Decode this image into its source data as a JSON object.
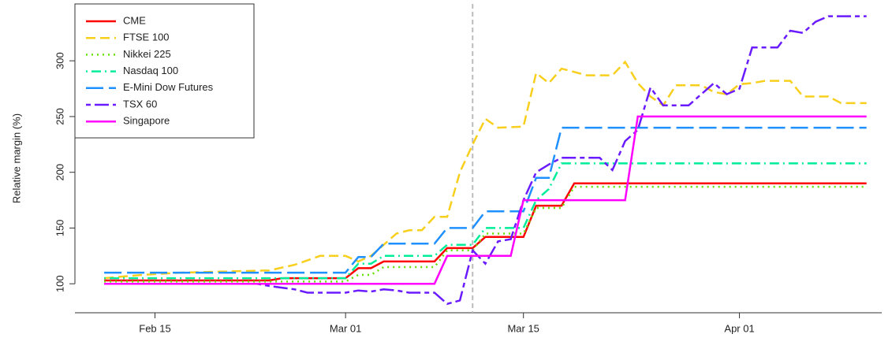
{
  "chart_data": {
    "type": "line",
    "y_label": "Relative margin (%)",
    "xlim": [
      39.7,
      103.2
    ],
    "ylim": [
      74,
      351
    ],
    "xticks": [
      {
        "value": 46,
        "label": "Feb 15"
      },
      {
        "value": 61,
        "label": "Mar 01"
      },
      {
        "value": 75,
        "label": "Mar 15"
      },
      {
        "value": 92,
        "label": "Apr 01"
      }
    ],
    "yticks": [
      100,
      150,
      200,
      250,
      300
    ],
    "vline": {
      "x": 71,
      "color": "#bbbbbb"
    },
    "legend": "top-left",
    "series": [
      {
        "name": "CME",
        "color": "#ff0000",
        "dash": "solid",
        "x": [
          42,
          55,
          56,
          61,
          62,
          63,
          64,
          68,
          69,
          71,
          72,
          75,
          76,
          78,
          79,
          102
        ],
        "values": [
          103,
          103,
          105,
          105,
          114,
          114,
          120,
          120,
          132,
          132,
          142,
          142,
          170,
          170,
          190,
          190
        ]
      },
      {
        "name": "FTSE 100",
        "color": "#f7cf1c",
        "dash": "dashed",
        "x": [
          42,
          45,
          48,
          55,
          57,
          59,
          61,
          62,
          63,
          64,
          65,
          66,
          67,
          68,
          69,
          70,
          71,
          72,
          73,
          75,
          76,
          77,
          78,
          79,
          80,
          82,
          83,
          84,
          85,
          86,
          87,
          89,
          90,
          91,
          92,
          93,
          94,
          96,
          97,
          99,
          100,
          102
        ],
        "values": [
          105,
          108,
          110,
          112,
          117,
          125,
          125,
          120,
          125,
          135,
          145,
          148,
          148,
          160,
          160,
          200,
          225,
          248,
          240,
          241,
          289,
          280,
          293,
          290,
          287,
          287,
          299,
          280,
          268,
          260,
          278,
          278,
          272,
          270,
          279,
          280,
          282,
          282,
          268,
          268,
          262,
          262
        ]
      },
      {
        "name": "Nikkei 225",
        "color": "#66e000",
        "dash": "dotted",
        "x": [
          42,
          61,
          62,
          63,
          64,
          68,
          69,
          71,
          72,
          75,
          76,
          78,
          79,
          102
        ],
        "values": [
          102,
          102,
          108,
          108,
          115,
          115,
          130,
          130,
          145,
          145,
          168,
          168,
          187,
          187
        ]
      },
      {
        "name": "Nasdaq 100",
        "color": "#00ee99",
        "dash": "dotdash",
        "x": [
          42,
          61,
          62,
          63,
          64,
          68,
          69,
          71,
          72,
          75,
          76,
          77,
          78,
          102
        ],
        "values": [
          105,
          105,
          118,
          118,
          125,
          125,
          135,
          135,
          150,
          150,
          175,
          185,
          208,
          208
        ]
      },
      {
        "name": "E-Mini Dow Futures",
        "color": "#1e90ff",
        "dash": "longdash",
        "x": [
          42,
          61,
          62,
          63,
          64,
          68,
          69,
          71,
          72,
          75,
          76,
          77,
          78,
          102
        ],
        "values": [
          110,
          110,
          124,
          124,
          136,
          136,
          150,
          150,
          165,
          165,
          195,
          195,
          240,
          240
        ]
      },
      {
        "name": "TSX 60",
        "color": "#6a1bff",
        "dash": "twodash",
        "x": [
          42,
          54,
          55,
          57,
          58,
          61,
          62,
          63,
          64,
          65,
          66,
          68,
          69,
          70,
          71,
          72,
          73,
          74,
          75,
          76,
          77,
          78,
          81,
          82,
          83,
          84,
          85,
          86,
          88,
          89,
          90,
          91,
          92,
          93,
          95,
          96,
          97,
          98,
          99,
          102
        ],
        "values": [
          100,
          100,
          98,
          95,
          92,
          92,
          94,
          93,
          95,
          94,
          92,
          92,
          82,
          85,
          130,
          118,
          138,
          140,
          175,
          200,
          207,
          213,
          213,
          202,
          228,
          238,
          276,
          260,
          260,
          270,
          280,
          270,
          275,
          312,
          312,
          327,
          325,
          335,
          340,
          340
        ]
      },
      {
        "name": "Singapore",
        "color": "#ff00ff",
        "dash": "solid",
        "x": [
          42,
          68,
          69,
          74,
          75,
          83,
          84,
          102
        ],
        "values": [
          100,
          100,
          125,
          125,
          175,
          175,
          250,
          250
        ]
      }
    ]
  }
}
